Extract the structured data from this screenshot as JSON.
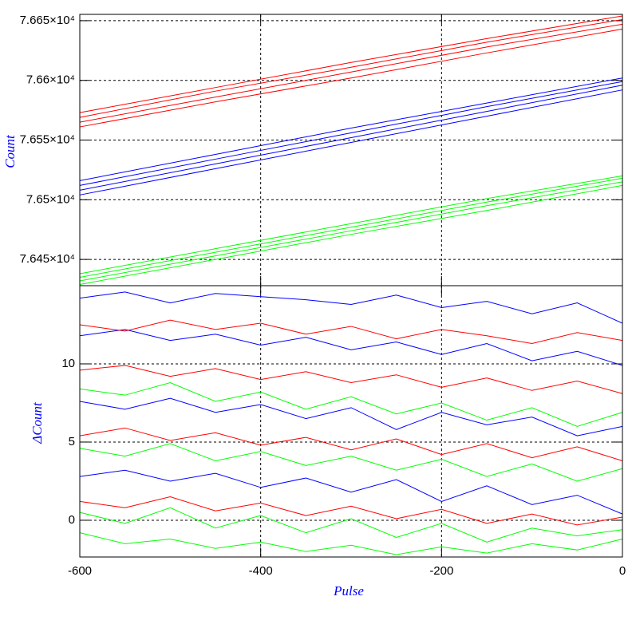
{
  "chart_data": [
    {
      "type": "line",
      "ylabel": "Count",
      "x": [
        -600,
        -450,
        -300,
        -150,
        0
      ],
      "ylim": [
        76428,
        76655.3
      ],
      "yticks": [
        {
          "value": 76450,
          "label": "7.645×10⁴"
        },
        {
          "value": 76500,
          "label": "7.65×10⁴"
        },
        {
          "value": 76550,
          "label": "7.655×10⁴"
        },
        {
          "value": 76600,
          "label": "7.66×10⁴"
        },
        {
          "value": 76650,
          "label": "7.665×10⁴"
        }
      ],
      "grid": true,
      "series": [
        {
          "color": "#ff0000",
          "values": [
            76561,
            76582,
            76602,
            76623,
            76643
          ]
        },
        {
          "color": "#ff0000",
          "values": [
            76565,
            76586,
            76607,
            76628,
            76647
          ]
        },
        {
          "color": "#ff0000",
          "values": [
            76569,
            76591,
            76611,
            76632,
            76651
          ]
        },
        {
          "color": "#ff0000",
          "values": [
            76573,
            76594,
            76615,
            76635,
            76654
          ]
        },
        {
          "color": "#0000ff",
          "values": [
            76504,
            76526,
            76548,
            76570,
            76592
          ]
        },
        {
          "color": "#0000ff",
          "values": [
            76508,
            76530,
            76552,
            76574,
            76596
          ]
        },
        {
          "color": "#0000ff",
          "values": [
            76512,
            76534,
            76556,
            76578,
            76599
          ]
        },
        {
          "color": "#0000ff",
          "values": [
            76516,
            76538,
            76560,
            76581,
            76602
          ]
        },
        {
          "color": "#00ff00",
          "values": [
            76429,
            76450,
            76471,
            76491,
            76512
          ]
        },
        {
          "color": "#00ff00",
          "values": [
            76432,
            76453,
            76474,
            76495,
            76515
          ]
        },
        {
          "color": "#00ff00",
          "values": [
            76435,
            76456,
            76477,
            76498,
            76518
          ]
        },
        {
          "color": "#00ff00",
          "values": [
            76438,
            76459,
            76480,
            76501,
            76520
          ]
        }
      ]
    },
    {
      "type": "line",
      "ylabel": "ΔCount",
      "xlabel": "Pulse",
      "x": [
        -600,
        -550,
        -500,
        -450,
        -400,
        -350,
        -300,
        -250,
        -200,
        -150,
        -100,
        -50,
        0
      ],
      "xlim": [
        -600,
        0
      ],
      "xticks": [
        -600,
        -400,
        -200,
        0
      ],
      "ylim": [
        -2.35,
        15
      ],
      "yticks": [
        0,
        5,
        10
      ],
      "grid": true,
      "series": [
        {
          "color": "#0000ff",
          "values": [
            14.2,
            14.6,
            13.9,
            14.5,
            14.3,
            14.1,
            13.8,
            14.4,
            13.6,
            14.0,
            13.2,
            13.9,
            12.6
          ]
        },
        {
          "color": "#0000ff",
          "values": [
            11.8,
            12.2,
            11.5,
            11.9,
            11.2,
            11.7,
            10.9,
            11.4,
            10.6,
            11.3,
            10.2,
            10.8,
            9.9
          ]
        },
        {
          "color": "#0000ff",
          "values": [
            7.6,
            7.1,
            7.8,
            6.9,
            7.4,
            6.5,
            7.2,
            5.8,
            6.9,
            6.1,
            6.6,
            5.4,
            6.0
          ]
        },
        {
          "color": "#0000ff",
          "values": [
            2.8,
            3.2,
            2.5,
            3.0,
            2.1,
            2.7,
            1.8,
            2.6,
            1.2,
            2.2,
            1.0,
            1.6,
            0.4
          ]
        },
        {
          "color": "#ff0000",
          "values": [
            12.5,
            12.1,
            12.8,
            12.2,
            12.6,
            11.9,
            12.4,
            11.6,
            12.2,
            11.8,
            11.3,
            12.0,
            11.5
          ]
        },
        {
          "color": "#ff0000",
          "values": [
            9.6,
            9.9,
            9.2,
            9.7,
            9.0,
            9.5,
            8.8,
            9.3,
            8.5,
            9.1,
            8.3,
            8.9,
            8.1
          ]
        },
        {
          "color": "#ff0000",
          "values": [
            5.4,
            5.9,
            5.1,
            5.6,
            4.8,
            5.3,
            4.5,
            5.2,
            4.2,
            4.9,
            4.0,
            4.7,
            3.8
          ]
        },
        {
          "color": "#ff0000",
          "values": [
            1.2,
            0.8,
            1.5,
            0.6,
            1.1,
            0.3,
            0.9,
            0.1,
            0.7,
            -0.2,
            0.4,
            -0.3,
            0.2
          ]
        },
        {
          "color": "#00ff00",
          "values": [
            8.4,
            8.0,
            8.8,
            7.6,
            8.2,
            7.1,
            7.9,
            6.8,
            7.5,
            6.4,
            7.2,
            6.0,
            6.9
          ]
        },
        {
          "color": "#00ff00",
          "values": [
            4.6,
            4.1,
            4.9,
            3.8,
            4.4,
            3.5,
            4.1,
            3.2,
            3.9,
            2.8,
            3.6,
            2.5,
            3.3
          ]
        },
        {
          "color": "#00ff00",
          "values": [
            0.5,
            -0.2,
            0.8,
            -0.5,
            0.3,
            -0.8,
            0.1,
            -1.1,
            -0.2,
            -1.4,
            -0.5,
            -1.0,
            -0.6
          ]
        },
        {
          "color": "#00ff00",
          "values": [
            -0.8,
            -1.5,
            -1.2,
            -1.8,
            -1.4,
            -2.0,
            -1.6,
            -2.2,
            -1.7,
            -2.1,
            -1.5,
            -1.9,
            -1.2
          ]
        }
      ]
    }
  ]
}
